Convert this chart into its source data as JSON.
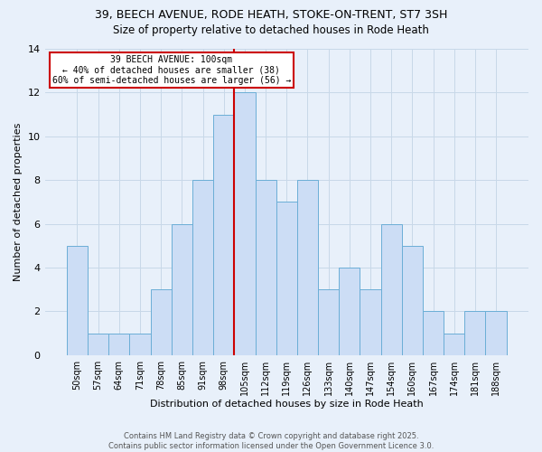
{
  "title": "39, BEECH AVENUE, RODE HEATH, STOKE-ON-TRENT, ST7 3SH",
  "subtitle": "Size of property relative to detached houses in Rode Heath",
  "xlabel": "Distribution of detached houses by size in Rode Heath",
  "ylabel": "Number of detached properties",
  "categories": [
    "50sqm",
    "57sqm",
    "64sqm",
    "71sqm",
    "78sqm",
    "85sqm",
    "91sqm",
    "98sqm",
    "105sqm",
    "112sqm",
    "119sqm",
    "126sqm",
    "133sqm",
    "140sqm",
    "147sqm",
    "154sqm",
    "160sqm",
    "167sqm",
    "174sqm",
    "181sqm",
    "188sqm"
  ],
  "values": [
    5,
    1,
    1,
    1,
    3,
    6,
    8,
    11,
    12,
    8,
    7,
    8,
    3,
    4,
    3,
    6,
    5,
    2,
    1,
    2,
    2
  ],
  "bar_color": "#ccddf5",
  "bar_edge_color": "#6baed6",
  "reference_line_index": 7,
  "annotation_title": "39 BEECH AVENUE: 100sqm",
  "annotation_line1": "← 40% of detached houses are smaller (38)",
  "annotation_line2": "60% of semi-detached houses are larger (56) →",
  "annotation_box_facecolor": "#ffffff",
  "annotation_box_edgecolor": "#cc0000",
  "reference_line_color": "#cc0000",
  "ylim": [
    0,
    14
  ],
  "yticks": [
    0,
    2,
    4,
    6,
    8,
    10,
    12,
    14
  ],
  "grid_color": "#c8d8e8",
  "background_color": "#e8f0fa",
  "footer_line1": "Contains HM Land Registry data © Crown copyright and database right 2025.",
  "footer_line2": "Contains public sector information licensed under the Open Government Licence 3.0.",
  "title_fontsize": 9,
  "subtitle_fontsize": 8.5,
  "ylabel_fontsize": 8,
  "xlabel_fontsize": 8,
  "tick_fontsize": 7,
  "annotation_fontsize": 7,
  "footer_fontsize": 6
}
